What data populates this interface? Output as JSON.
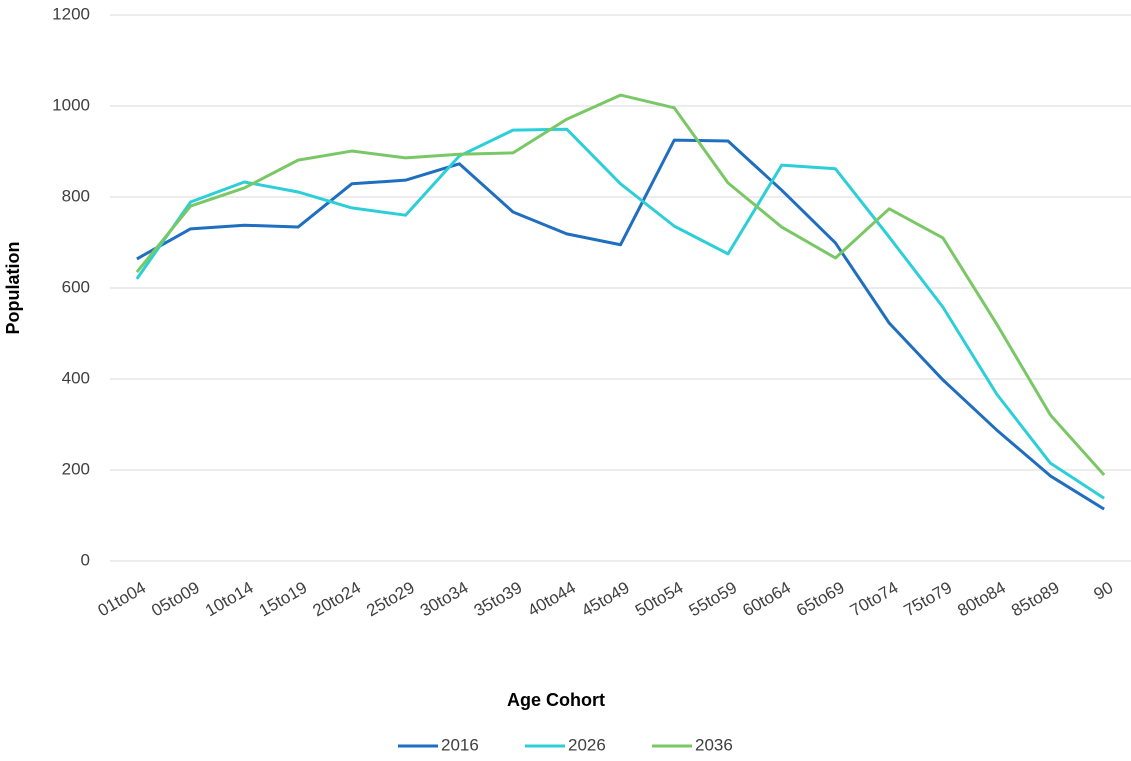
{
  "chart_data": {
    "type": "line",
    "xlabel": "Age Cohort",
    "ylabel": "Population",
    "categories": [
      "01to04",
      "05to09",
      "10to14",
      "15to19",
      "20to24",
      "25to29",
      "30to34",
      "35to39",
      "40to44",
      "45to49",
      "50to54",
      "55to59",
      "60to64",
      "65to69",
      "70to74",
      "75to79",
      "80to84",
      "85to89",
      "90"
    ],
    "series": [
      {
        "name": "2016",
        "color": "#1f6ec0",
        "values": [
          664,
          730,
          738,
          734,
          829,
          837,
          873,
          767,
          719,
          695,
          925,
          923,
          815,
          699,
          523,
          398,
          288,
          187,
          114
        ]
      },
      {
        "name": "2026",
        "color": "#2ccfd8",
        "values": [
          620,
          789,
          833,
          811,
          776,
          760,
          890,
          947,
          949,
          829,
          736,
          675,
          870,
          862,
          712,
          558,
          367,
          215,
          138
        ]
      },
      {
        "name": "2036",
        "color": "#7ac865",
        "values": [
          635,
          780,
          820,
          881,
          901,
          886,
          894,
          897,
          971,
          1024,
          996,
          831,
          734,
          666,
          774,
          710,
          521,
          321,
          189
        ]
      }
    ],
    "ylim": [
      0,
      1200
    ],
    "yticks": [
      0,
      200,
      400,
      600,
      800,
      1000,
      1200
    ],
    "grid": true,
    "legend": "bottom"
  }
}
